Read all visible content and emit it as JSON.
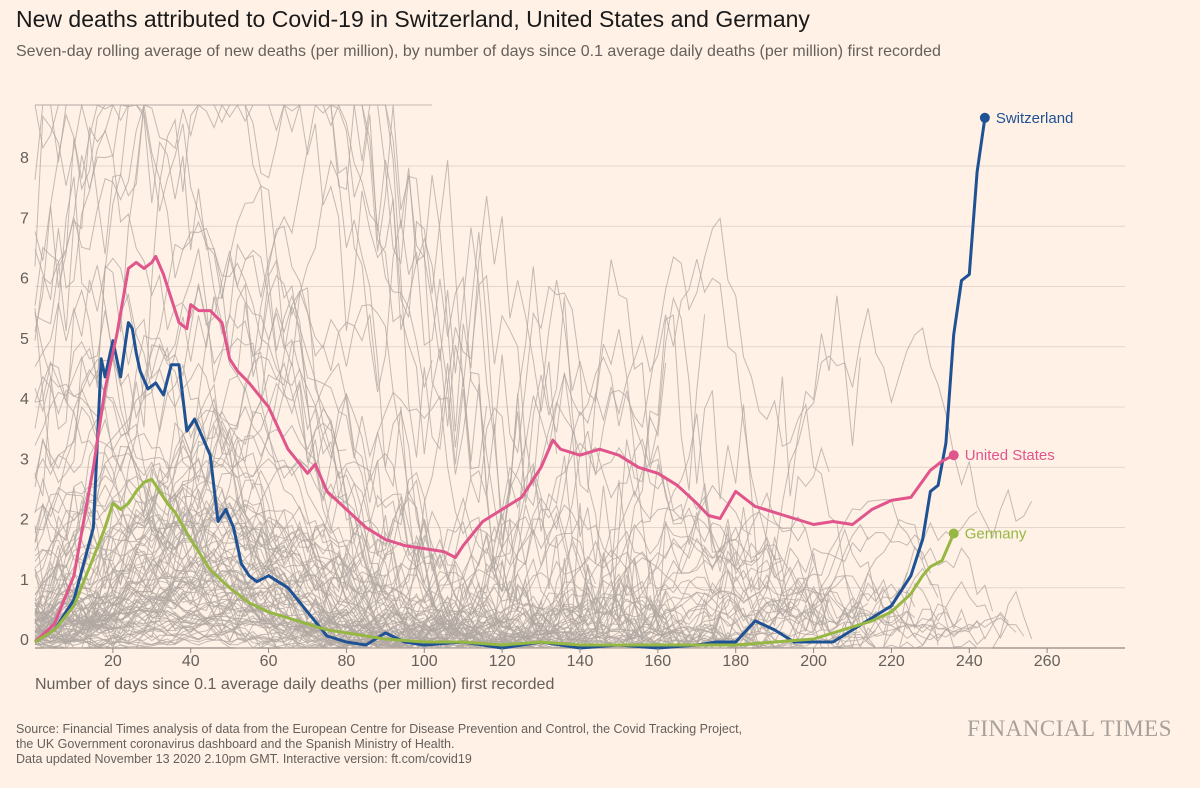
{
  "title": "New deaths attributed to Covid-19 in Switzerland, United States and Germany",
  "subtitle": "Seven-day rolling average of new deaths (per million), by number of days since 0.1 average daily deaths (per million) first recorded",
  "source_lines": [
    "Source: Financial Times analysis of data from the European Centre for Disease Prevention and Control, the Covid Tracking Project,",
    "the UK Government coronavirus dashboard and the Spanish Ministry of Health.",
    "Data updated November 13 2020 2.10pm GMT. Interactive version: ft.com/covid19"
  ],
  "brand": "FINANCIAL TIMES",
  "colors": {
    "background": "#fff1e5",
    "grid": "#e3d6cb",
    "background_lines": "#b0a7a2",
    "Switzerland": "#1f5294",
    "United States": "#e0558c",
    "Germany": "#97b744"
  },
  "chart_data": {
    "type": "line",
    "xlabel": "Number of days since 0.1 average daily deaths (per million) first recorded",
    "ylabel": "",
    "xlim": [
      0,
      280
    ],
    "ylim": [
      0,
      9
    ],
    "x_ticks": [
      20,
      40,
      60,
      80,
      100,
      120,
      140,
      160,
      180,
      200,
      220,
      240,
      260
    ],
    "y_ticks": [
      0,
      1,
      2,
      3,
      4,
      5,
      6,
      7,
      8
    ],
    "grid": "horizontal",
    "legend": "direct labels at series ends (right)",
    "background_series_note": "many grey lines for other countries",
    "series": [
      {
        "name": "Switzerland",
        "x": [
          0,
          5,
          10,
          15,
          17,
          18,
          20,
          22,
          24,
          25,
          26,
          27,
          29,
          31,
          33,
          35,
          37,
          39,
          41,
          43,
          45,
          47,
          49,
          51,
          53,
          55,
          57,
          60,
          65,
          70,
          75,
          80,
          85,
          90,
          95,
          100,
          110,
          120,
          130,
          140,
          150,
          160,
          170,
          175,
          180,
          185,
          190,
          195,
          200,
          205,
          210,
          215,
          220,
          225,
          228,
          230,
          232,
          234,
          236,
          238,
          240,
          242,
          244
        ],
        "values": [
          0.1,
          0.3,
          0.8,
          2.0,
          4.8,
          4.5,
          5.1,
          4.5,
          5.4,
          5.3,
          4.9,
          4.6,
          4.3,
          4.4,
          4.2,
          4.7,
          4.7,
          3.6,
          3.8,
          3.5,
          3.2,
          2.1,
          2.3,
          2.0,
          1.4,
          1.2,
          1.1,
          1.2,
          1.0,
          0.6,
          0.2,
          0.1,
          0.05,
          0.25,
          0.1,
          0.05,
          0.1,
          0.0,
          0.1,
          0.0,
          0.05,
          0.0,
          0.05,
          0.1,
          0.1,
          0.45,
          0.3,
          0.1,
          0.1,
          0.1,
          0.3,
          0.5,
          0.7,
          1.2,
          1.8,
          2.6,
          2.7,
          3.4,
          5.2,
          6.1,
          6.2,
          7.9,
          8.8
        ]
      },
      {
        "name": "United States",
        "x": [
          0,
          5,
          10,
          15,
          18,
          21,
          24,
          26,
          28,
          30,
          31,
          33,
          35,
          37,
          39,
          40,
          42,
          45,
          48,
          50,
          52,
          55,
          60,
          65,
          70,
          72,
          75,
          80,
          85,
          90,
          95,
          100,
          105,
          108,
          110,
          115,
          120,
          125,
          130,
          133,
          135,
          140,
          145,
          150,
          155,
          160,
          165,
          170,
          173,
          176,
          180,
          185,
          190,
          195,
          200,
          205,
          210,
          215,
          220,
          225,
          230,
          233,
          236
        ],
        "values": [
          0.1,
          0.4,
          1.2,
          3.0,
          4.3,
          5.2,
          6.3,
          6.4,
          6.3,
          6.4,
          6.5,
          6.2,
          5.8,
          5.4,
          5.3,
          5.7,
          5.6,
          5.6,
          5.4,
          4.8,
          4.6,
          4.4,
          4.0,
          3.3,
          2.9,
          3.05,
          2.6,
          2.3,
          2.0,
          1.8,
          1.7,
          1.65,
          1.6,
          1.5,
          1.7,
          2.1,
          2.3,
          2.5,
          3.0,
          3.45,
          3.3,
          3.2,
          3.3,
          3.2,
          3.0,
          2.9,
          2.7,
          2.4,
          2.2,
          2.15,
          2.6,
          2.35,
          2.25,
          2.15,
          2.05,
          2.1,
          2.05,
          2.3,
          2.45,
          2.5,
          2.95,
          3.1,
          3.2
        ]
      },
      {
        "name": "Germany",
        "x": [
          0,
          5,
          10,
          15,
          18,
          20,
          22,
          24,
          26,
          28,
          30,
          32,
          34,
          36,
          40,
          45,
          50,
          55,
          60,
          65,
          70,
          75,
          80,
          90,
          100,
          110,
          120,
          130,
          140,
          150,
          160,
          170,
          180,
          190,
          200,
          205,
          210,
          215,
          220,
          225,
          228,
          230,
          233,
          236
        ],
        "values": [
          0.1,
          0.3,
          0.7,
          1.5,
          2.0,
          2.4,
          2.3,
          2.4,
          2.6,
          2.75,
          2.8,
          2.6,
          2.4,
          2.25,
          1.8,
          1.3,
          1.0,
          0.75,
          0.6,
          0.5,
          0.4,
          0.3,
          0.25,
          0.15,
          0.1,
          0.1,
          0.05,
          0.1,
          0.05,
          0.05,
          0.05,
          0.05,
          0.05,
          0.1,
          0.15,
          0.25,
          0.35,
          0.45,
          0.6,
          0.9,
          1.2,
          1.35,
          1.45,
          1.9
        ]
      }
    ]
  }
}
